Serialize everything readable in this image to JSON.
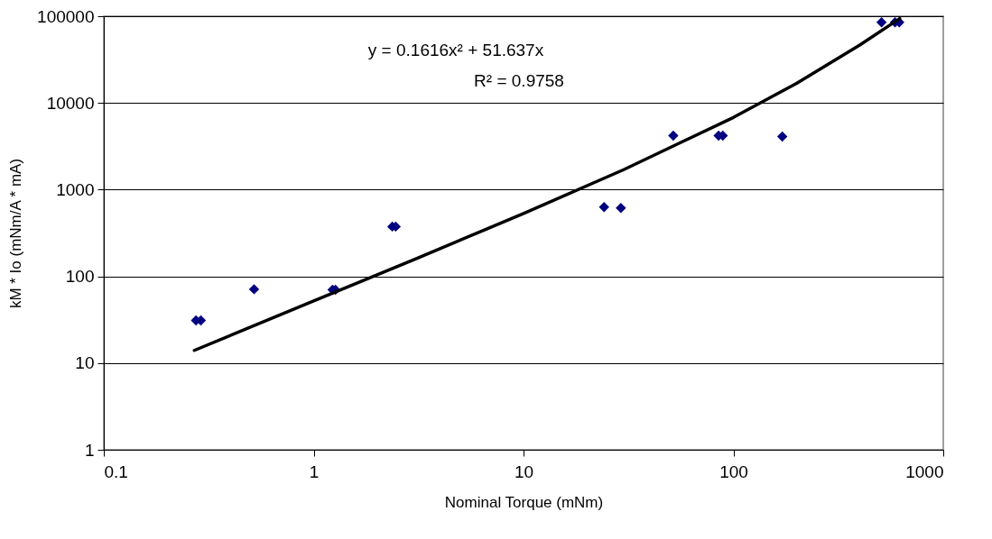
{
  "chart_data": {
    "type": "scatter",
    "xlabel": "Nominal Torque (mNm)",
    "ylabel": "kM * Io (mNm/A * mA)",
    "log": "xy",
    "xlim": [
      0.1,
      1000
    ],
    "ylim": [
      1,
      100000
    ],
    "xticks": [
      0.1,
      1,
      10,
      100,
      1000
    ],
    "yticks": [
      1,
      10,
      100,
      1000,
      10000,
      100000
    ],
    "grid": "y",
    "annotations": [
      "y = 0.1616x² + 51.637x",
      "R² = 0.9758"
    ],
    "series": [
      {
        "color": "#000080",
        "marker": "diamond",
        "x": [
          0.275,
          0.29,
          0.52,
          1.23,
          1.27,
          2.37,
          2.46,
          24.2,
          29.1,
          51.7,
          85,
          89,
          171,
          508,
          589,
          617
        ],
        "values": [
          31,
          31,
          71,
          70,
          70,
          375,
          375,
          630,
          615,
          4200,
          4200,
          4200,
          4100,
          85000,
          85000,
          85000
        ]
      },
      {
        "type": "line",
        "color": "#000000",
        "marker": "none",
        "x": [
          0.27,
          1,
          3,
          10,
          30,
          100,
          200,
          400,
          620
        ],
        "values": [
          14,
          52,
          156,
          530,
          1700,
          6800,
          16800,
          46500,
          94000
        ]
      }
    ]
  }
}
